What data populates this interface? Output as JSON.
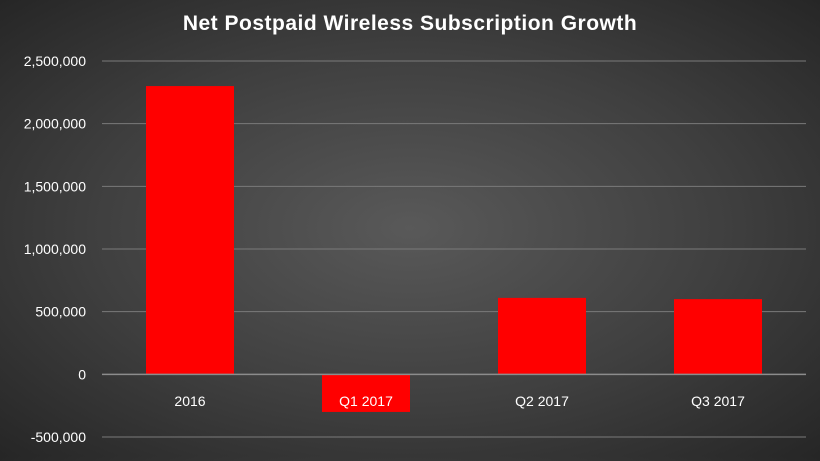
{
  "chart_data": {
    "type": "bar",
    "title": "Net Postpaid Wireless Subscription Growth",
    "categories": [
      "2016",
      "Q1 2017",
      "Q2 2017",
      "Q3 2017"
    ],
    "values": [
      2300000,
      -300000,
      610000,
      600000
    ],
    "ylim": [
      -500000,
      2500000
    ],
    "yticks": [
      -500000,
      0,
      500000,
      1000000,
      1500000,
      2000000,
      2500000
    ],
    "ytick_labels": [
      "-500,000",
      "0",
      "500,000",
      "1,000,000",
      "1,500,000",
      "2,000,000",
      "2,500,000"
    ],
    "xlabel": "",
    "ylabel": "",
    "grid": true,
    "legend": "none",
    "colors": {
      "bar": "#ff0000",
      "text": "#ffffff",
      "grid": "#7a7a7a",
      "axis": "#8c8c8c"
    }
  }
}
